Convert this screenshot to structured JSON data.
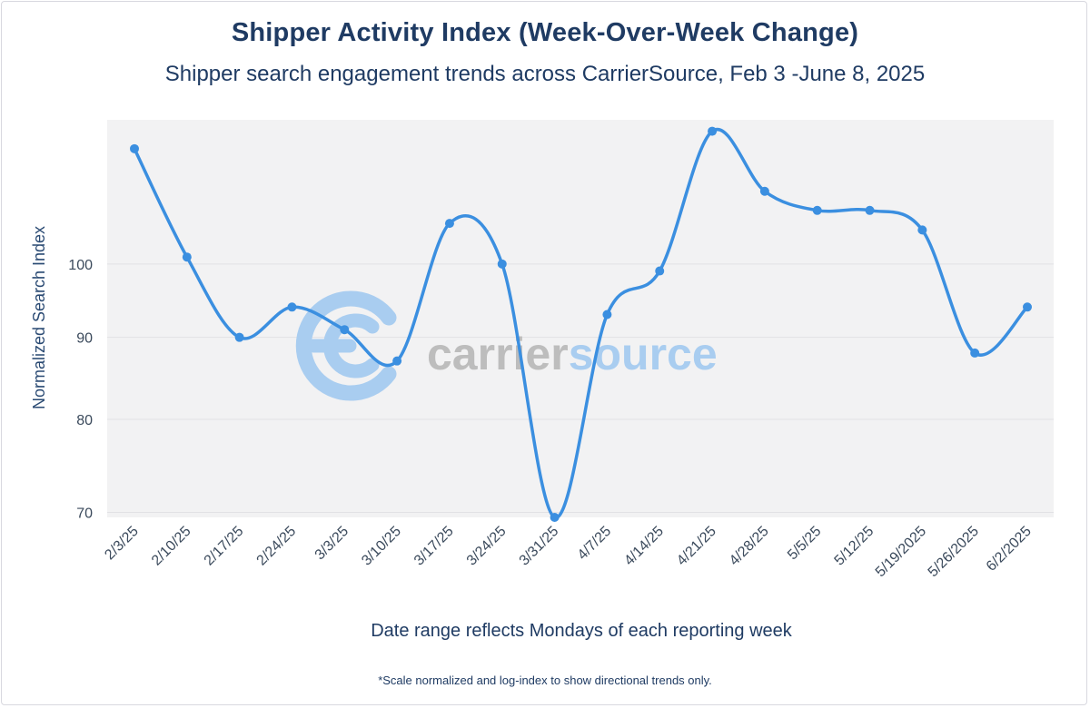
{
  "title": "Shipper Activity Index (Week-Over-Week Change)",
  "subtitle": "Shipper search engagement trends across CarrierSource, Feb 3 -June 8, 2025",
  "xlabel": "Date range reflects Mondays of each reporting week",
  "footnote": "*Scale normalized and log-index to show directional trends only.",
  "watermark": {
    "part1": "carrier",
    "part2": "source",
    "color_gray": "#bdbdbd",
    "color_blue": "#a9cdf0"
  },
  "colors": {
    "line": "#3b8fe0",
    "plot_bg": "#f2f2f3",
    "grid": "#e1e1e5",
    "axis_text": "#3b4a5c",
    "title": "#1f3b63"
  },
  "chart_data": {
    "type": "line",
    "title": "Shipper Activity Index (Week-Over-Week Change)",
    "subtitle": "Shipper search engagement trends across CarrierSource, Feb 3 -June 8, 2025",
    "xlabel": "Date range reflects Mondays of each reporting week",
    "ylabel": "Normalized Search Index",
    "y_scale": "log",
    "yticks": [
      70,
      80,
      90,
      100
    ],
    "ylim": [
      69.5,
      123
    ],
    "grid": true,
    "categories": [
      "2/3/25",
      "2/10/25",
      "2/17/25",
      "2/24/25",
      "3/3/25",
      "3/10/25",
      "3/17/25",
      "3/24/25",
      "3/31/25",
      "4/7/25",
      "4/14/25",
      "4/21/25",
      "4/28/25",
      "5/5/25",
      "5/12/25",
      "5/19/2025",
      "5/26/2025",
      "6/2/2025"
    ],
    "series": [
      {
        "values": [
          118,
          101,
          90,
          94,
          91,
          87,
          106,
          100,
          69.5,
          93,
          99,
          121,
          111,
          108,
          108,
          105,
          88,
          94
        ]
      }
    ]
  }
}
